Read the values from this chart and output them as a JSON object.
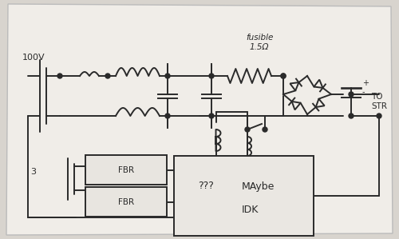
{
  "bg_color": "#d8d4ce",
  "paper_color": "#f0ede8",
  "line_color": "#2a2a2a",
  "lw": 1.4,
  "fusible_label": "fusible\n1.5Ω",
  "tostr_label": "TO\nSTR",
  "fbr1_label": "FBR",
  "fbr2_label": "FBR",
  "idk_label1": "???",
  "idk_label2": "MAybe",
  "idk_label3": "IDK",
  "label_100v": "100V"
}
